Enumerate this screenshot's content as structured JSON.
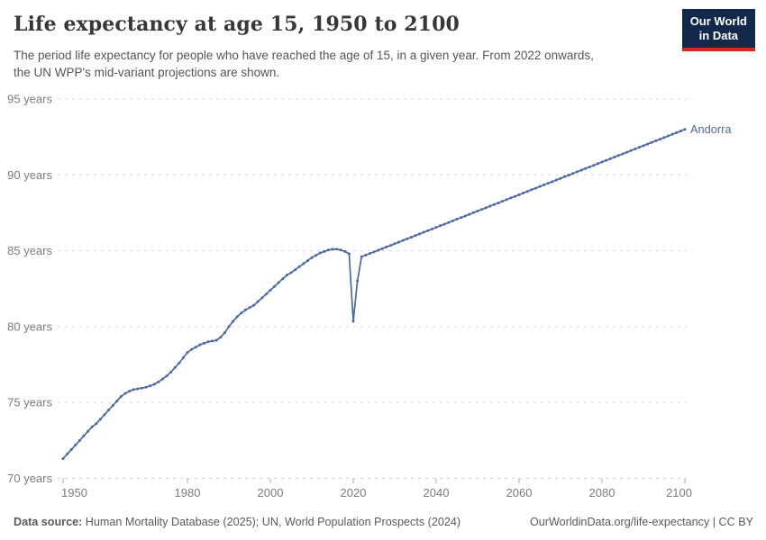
{
  "header": {
    "title": "Life expectancy at age 15, 1950 to 2100",
    "subtitle_line1": "The period life expectancy for people who have reached the age of 15, in a given year. From 2022 onwards,",
    "subtitle_line2": "the UN WPP's mid-variant projections are shown.",
    "logo": {
      "line1": "Our World",
      "line2": "in Data",
      "bg_color": "#13294b",
      "accent_color": "#d8261c"
    }
  },
  "footer": {
    "source_label": "Data source:",
    "source_text": "Human Mortality Database (2025); UN, World Population Prospects (2024)",
    "link_text": "OurWorldinData.org/life-expectancy | CC BY"
  },
  "chart_data": {
    "type": "line",
    "title": "Life expectancy at age 15, 1950 to 2100",
    "entity": "Andorra",
    "xlabel": "",
    "ylabel": "",
    "xlim": [
      1950,
      2100
    ],
    "ylim": [
      70,
      95
    ],
    "grid": "horizontal-dashed",
    "projection_start_year": 2022,
    "years": {
      "start": 1950,
      "end": 2100,
      "step": 1
    },
    "xticks": [
      {
        "value": 1950,
        "label": "1950"
      },
      {
        "value": 1980,
        "label": "1980"
      },
      {
        "value": 2000,
        "label": "2000"
      },
      {
        "value": 2020,
        "label": "2020"
      },
      {
        "value": 2040,
        "label": "2040"
      },
      {
        "value": 2060,
        "label": "2060"
      },
      {
        "value": 2080,
        "label": "2080"
      },
      {
        "value": 2100,
        "label": "2100"
      }
    ],
    "yticks": [
      {
        "value": 70,
        "label": "70 years"
      },
      {
        "value": 75,
        "label": "75 years"
      },
      {
        "value": 80,
        "label": "80 years"
      },
      {
        "value": 85,
        "label": "85 years"
      },
      {
        "value": 90,
        "label": "90 years"
      },
      {
        "value": 95,
        "label": "95 years"
      }
    ],
    "series": [
      {
        "name": "Andorra",
        "color": "#4C6A9C",
        "values": [
          71.3,
          71.6,
          71.9,
          72.2,
          72.5,
          72.8,
          73.1,
          73.4,
          73.6,
          73.9,
          74.2,
          74.5,
          74.8,
          75.1,
          75.4,
          75.6,
          75.75,
          75.85,
          75.9,
          75.95,
          76.0,
          76.1,
          76.2,
          76.35,
          76.55,
          76.75,
          77.0,
          77.3,
          77.6,
          77.95,
          78.3,
          78.5,
          78.65,
          78.8,
          78.9,
          79.0,
          79.05,
          79.1,
          79.3,
          79.6,
          80.0,
          80.35,
          80.65,
          80.9,
          81.1,
          81.25,
          81.4,
          81.65,
          81.9,
          82.15,
          82.4,
          82.65,
          82.9,
          83.15,
          83.4,
          83.55,
          83.75,
          83.95,
          84.15,
          84.35,
          84.55,
          84.7,
          84.85,
          84.95,
          85.05,
          85.1,
          85.1,
          85.05,
          84.95,
          84.8,
          80.35,
          83.0,
          84.6,
          84.71,
          84.82,
          84.92,
          85.03,
          85.14,
          85.25,
          85.35,
          85.46,
          85.57,
          85.68,
          85.78,
          85.89,
          86.0,
          86.11,
          86.22,
          86.32,
          86.43,
          86.54,
          86.65,
          86.75,
          86.86,
          86.97,
          87.08,
          87.18,
          87.29,
          87.4,
          87.51,
          87.62,
          87.72,
          87.83,
          87.94,
          88.05,
          88.15,
          88.26,
          88.37,
          88.48,
          88.58,
          88.69,
          88.8,
          88.91,
          89.02,
          89.12,
          89.23,
          89.34,
          89.45,
          89.55,
          89.66,
          89.77,
          89.88,
          89.98,
          90.09,
          90.2,
          90.31,
          90.42,
          90.52,
          90.63,
          90.74,
          90.85,
          90.95,
          91.06,
          91.17,
          91.28,
          91.38,
          91.49,
          91.6,
          91.71,
          91.82,
          91.92,
          92.03,
          92.14,
          92.25,
          92.35,
          92.46,
          92.57,
          92.68,
          92.78,
          92.89,
          93.0
        ]
      }
    ]
  }
}
